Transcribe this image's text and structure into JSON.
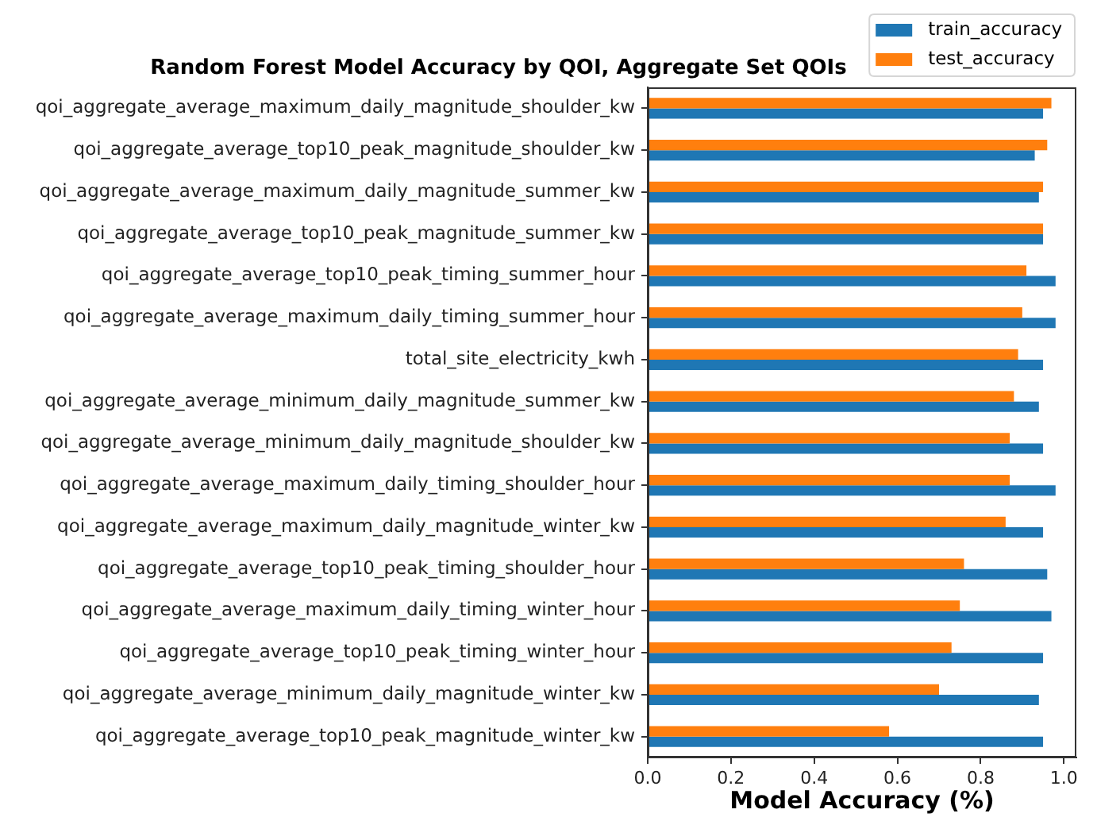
{
  "chart_data": {
    "type": "bar",
    "orientation": "horizontal",
    "title": "Random Forest Model Accuracy by QOI, Aggregate Set QOIs",
    "xlabel": "Model Accuracy (%)",
    "categories": [
      "qoi_aggregate_average_maximum_daily_magnitude_shoulder_kw",
      "qoi_aggregate_average_top10_peak_magnitude_shoulder_kw",
      "qoi_aggregate_average_maximum_daily_magnitude_summer_kw",
      "qoi_aggregate_average_top10_peak_magnitude_summer_kw",
      "qoi_aggregate_average_top10_peak_timing_summer_hour",
      "qoi_aggregate_average_maximum_daily_timing_summer_hour",
      "total_site_electricity_kwh",
      "qoi_aggregate_average_minimum_daily_magnitude_summer_kw",
      "qoi_aggregate_average_minimum_daily_magnitude_shoulder_kw",
      "qoi_aggregate_average_maximum_daily_timing_shoulder_hour",
      "qoi_aggregate_average_maximum_daily_magnitude_winter_kw",
      "qoi_aggregate_average_top10_peak_timing_shoulder_hour",
      "qoi_aggregate_average_maximum_daily_timing_winter_hour",
      "qoi_aggregate_average_top10_peak_timing_winter_hour",
      "qoi_aggregate_average_minimum_daily_magnitude_winter_kw",
      "qoi_aggregate_average_top10_peak_magnitude_winter_kw"
    ],
    "series": [
      {
        "name": "train_accuracy",
        "color": "#1f77b4",
        "values": [
          0.95,
          0.93,
          0.94,
          0.95,
          0.98,
          0.98,
          0.95,
          0.94,
          0.95,
          0.98,
          0.95,
          0.96,
          0.97,
          0.95,
          0.94,
          0.95
        ]
      },
      {
        "name": "test_accuracy",
        "color": "#ff7f0e",
        "values": [
          0.97,
          0.96,
          0.95,
          0.95,
          0.91,
          0.9,
          0.89,
          0.88,
          0.87,
          0.87,
          0.86,
          0.76,
          0.75,
          0.73,
          0.7,
          0.58
        ]
      }
    ],
    "xlim": [
      0,
      1.03
    ],
    "xticks": [
      {
        "value": 0,
        "label": "0.0"
      },
      0.2,
      0.4,
      0.6,
      0.8,
      {
        "value": 1,
        "label": "1.0"
      }
    ],
    "grid": false,
    "legend": "top right"
  }
}
